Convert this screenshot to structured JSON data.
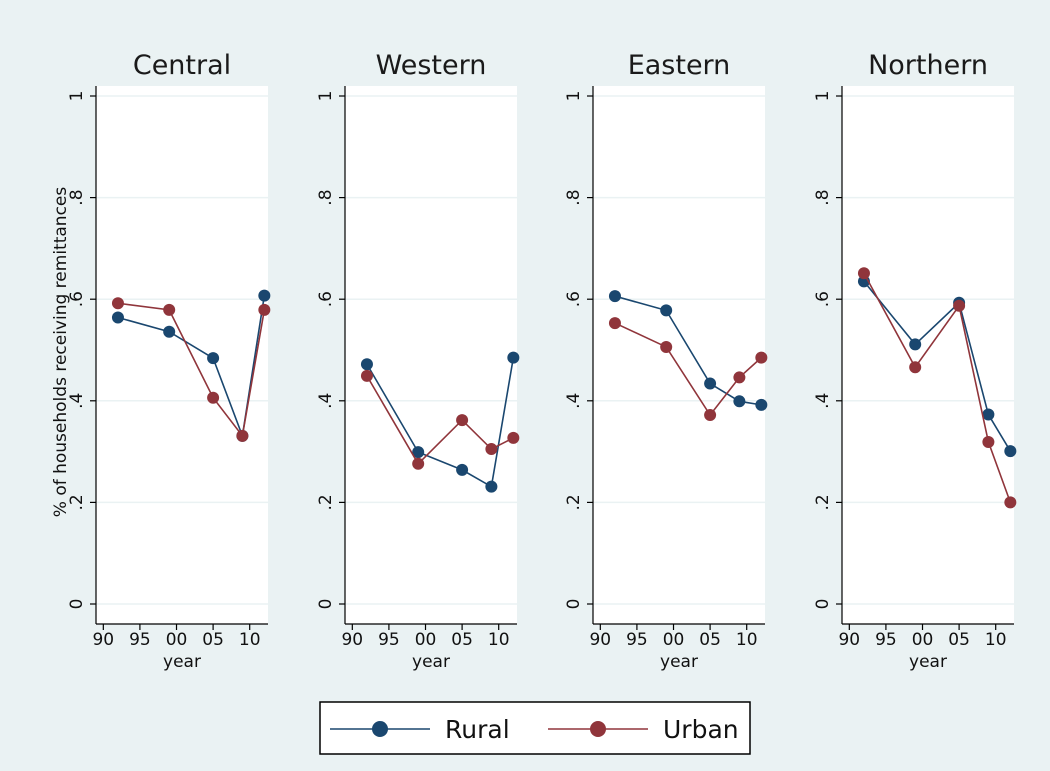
{
  "chart_data": {
    "type": "line",
    "layout": "small-multiples",
    "ylabel": "% of households receiving remittances",
    "xlabel": "year",
    "x_ticks": [
      {
        "value": 1990,
        "label": "90"
      },
      {
        "value": 1995,
        "label": "95"
      },
      {
        "value": 2000,
        "label": "00"
      },
      {
        "value": 2005,
        "label": "05"
      },
      {
        "value": 2010,
        "label": "10"
      }
    ],
    "y_ticks": [
      {
        "value": 0,
        "label": "0"
      },
      {
        "value": 0.2,
        "label": ".2"
      },
      {
        "value": 0.4,
        "label": ".4"
      },
      {
        "value": 0.6,
        "label": ".6"
      },
      {
        "value": 0.8,
        "label": ".8"
      },
      {
        "value": 1,
        "label": "1"
      }
    ],
    "xlim": [
      1989,
      2012.5
    ],
    "ylim": [
      0,
      1
    ],
    "grid": "horizontal",
    "legend_position": "bottom",
    "colors": {
      "Rural": "#1a476f",
      "Urban": "#90353b",
      "outer_background": "#eaf2f3",
      "plot_background": "#ffffff",
      "grid": "#eaf2f3"
    },
    "panels": [
      {
        "title": "Central",
        "series": [
          {
            "name": "Rural",
            "x": [
              1992,
              1999,
              2005,
              2009,
              2012
            ],
            "y": [
              0.564,
              0.536,
              0.484,
              0.331,
              0.607
            ]
          },
          {
            "name": "Urban",
            "x": [
              1992,
              1999,
              2005,
              2009,
              2012
            ],
            "y": [
              0.592,
              0.579,
              0.406,
              0.331,
              0.579
            ]
          }
        ]
      },
      {
        "title": "Western",
        "series": [
          {
            "name": "Rural",
            "x": [
              1992,
              1999,
              2005,
              2009,
              2012
            ],
            "y": [
              0.472,
              0.299,
              0.264,
              0.231,
              0.485
            ]
          },
          {
            "name": "Urban",
            "x": [
              1992,
              1999,
              2005,
              2009,
              2012
            ],
            "y": [
              0.449,
              0.276,
              0.362,
              0.305,
              0.327
            ]
          }
        ]
      },
      {
        "title": "Eastern",
        "series": [
          {
            "name": "Rural",
            "x": [
              1992,
              1999,
              2005,
              2009,
              2012
            ],
            "y": [
              0.606,
              0.578,
              0.434,
              0.399,
              0.392
            ]
          },
          {
            "name": "Urban",
            "x": [
              1992,
              1999,
              2005,
              2009,
              2012
            ],
            "y": [
              0.553,
              0.506,
              0.372,
              0.446,
              0.485
            ]
          }
        ]
      },
      {
        "title": "Northern",
        "series": [
          {
            "name": "Rural",
            "x": [
              1992,
              1999,
              2005,
              2009,
              2012
            ],
            "y": [
              0.635,
              0.511,
              0.593,
              0.373,
              0.301
            ]
          },
          {
            "name": "Urban",
            "x": [
              1992,
              1999,
              2005,
              2009,
              2012
            ],
            "y": [
              0.651,
              0.466,
              0.587,
              0.319,
              0.2
            ]
          }
        ]
      }
    ],
    "legend": [
      {
        "name": "Rural"
      },
      {
        "name": "Urban"
      }
    ]
  }
}
